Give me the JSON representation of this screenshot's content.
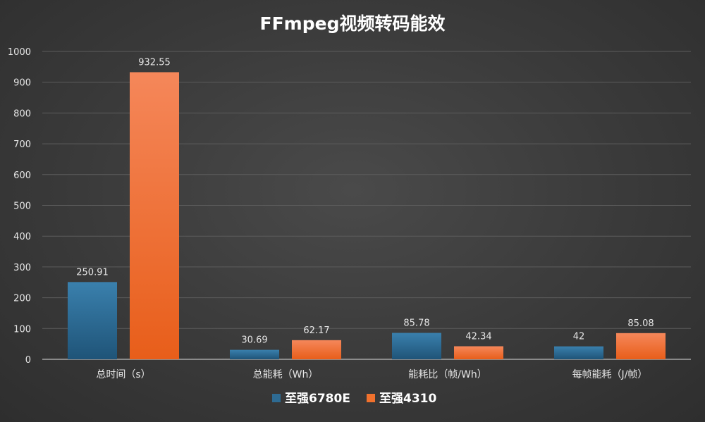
{
  "chart_data": {
    "type": "bar",
    "title": "FFmpeg视频转码能效",
    "xlabel": "",
    "ylabel": "",
    "ylim": [
      0,
      1000
    ],
    "yticks": [
      0,
      100,
      200,
      300,
      400,
      500,
      600,
      700,
      800,
      900,
      1000
    ],
    "grid": true,
    "legend_position": "bottom",
    "categories": [
      "总时间（s）",
      "总能耗（Wh）",
      "能耗比（帧/Wh）",
      "每帧能耗（J/帧）"
    ],
    "series": [
      {
        "name": "至强6780E",
        "color": "#2e6b93",
        "values": [
          250.91,
          30.69,
          85.78,
          42
        ],
        "labels": [
          "250.91",
          "30.69",
          "85.78",
          "42"
        ]
      },
      {
        "name": "至强4310",
        "color": "#f0712d",
        "values": [
          932.55,
          62.17,
          42.34,
          85.08
        ],
        "labels": [
          "932.55",
          "62.17",
          "42.34",
          "85.08"
        ]
      }
    ]
  }
}
